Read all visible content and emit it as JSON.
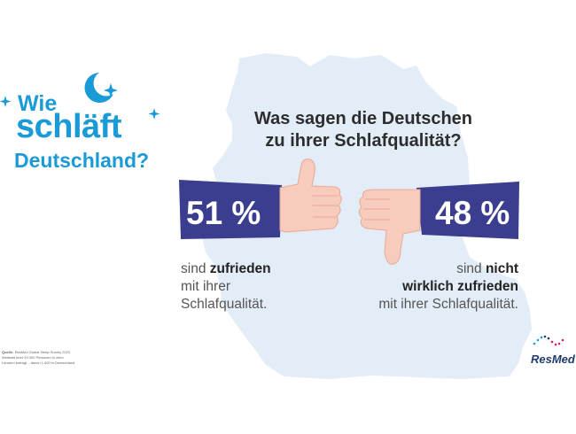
{
  "brand": {
    "logo_lines": [
      "Wie",
      "schläft",
      "Deutschland?"
    ],
    "company": "ResMed",
    "colors": {
      "logo_blue": "#1a9ad6",
      "badge_navy": "#3b3d8f",
      "map_blue": "#e3edf8",
      "skin": "#f7ccbc"
    },
    "icons": [
      "moon-icon",
      "star-icon",
      "thumbs-up-icon",
      "thumbs-down-icon",
      "resmed-logo-icon"
    ]
  },
  "question": {
    "line1": "Was sagen die Deutschen",
    "line2": "zu ihrer Schlafqualität?"
  },
  "chart_data": {
    "type": "bar",
    "title": "Was sagen die Deutschen zu ihrer Schlafqualität?",
    "unit": "%",
    "categories": [
      "zufrieden",
      "nicht wirklich zufrieden"
    ],
    "values": [
      51,
      48
    ],
    "labels": [
      "51 %",
      "48 %"
    ],
    "descriptions": [
      {
        "pre": "sind ",
        "bold": "zufrieden",
        "rest": [
          "mit ihrer",
          "Schlafqualität."
        ]
      },
      {
        "pre": "sind ",
        "bold": "nicht",
        "bold2": "wirklich zufrieden",
        "rest": [
          "mit ihrer Schlafqualität."
        ]
      }
    ]
  },
  "source": {
    "label": "Quelle:",
    "lines": [
      "ResMed Global Sleep Survey 2022",
      "Weltweit über 20.000 Personen in zehn",
      "Ländern befragt – davon 1.000 in Deutschland."
    ]
  }
}
